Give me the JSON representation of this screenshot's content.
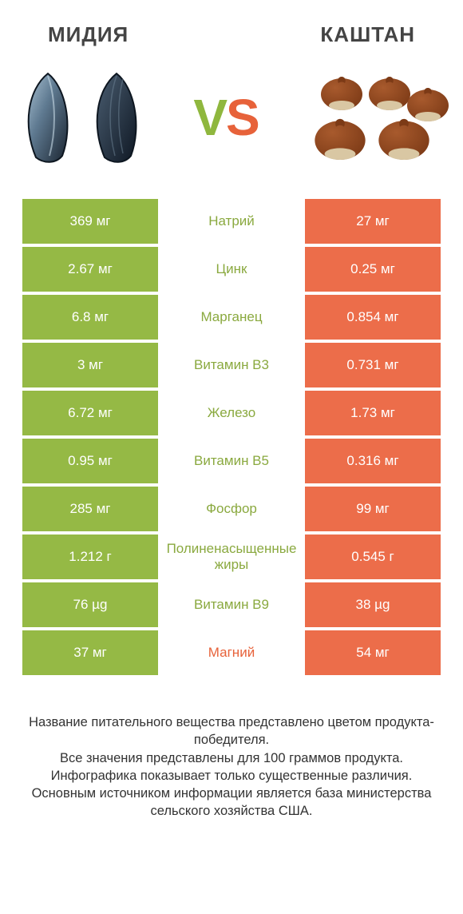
{
  "titles": {
    "left": "МИДИЯ",
    "right": "КАШТАН"
  },
  "vs": {
    "v": "V",
    "s": "S"
  },
  "colors": {
    "left": "#95b945",
    "right": "#ec6d4a",
    "left_text": "#8aa93f",
    "right_text": "#e7623a",
    "footer": "#333333",
    "mussel_dark": "#2a3543",
    "mussel_mid": "#5f7a91",
    "mussel_light": "#a9c1d2",
    "chestnut_body": "#7c3a16",
    "chestnut_shine": "#a85a2d",
    "chestnut_base": "#d9c7a3"
  },
  "rows": [
    {
      "label": "Натрий",
      "left": "369 мг",
      "right": "27 мг",
      "winner": "left"
    },
    {
      "label": "Цинк",
      "left": "2.67 мг",
      "right": "0.25 мг",
      "winner": "left"
    },
    {
      "label": "Марганец",
      "left": "6.8 мг",
      "right": "0.854 мг",
      "winner": "left"
    },
    {
      "label": "Витамин B3",
      "left": "3 мг",
      "right": "0.731 мг",
      "winner": "left"
    },
    {
      "label": "Железо",
      "left": "6.72 мг",
      "right": "1.73 мг",
      "winner": "left"
    },
    {
      "label": "Витамин B5",
      "left": "0.95 мг",
      "right": "0.316 мг",
      "winner": "left"
    },
    {
      "label": "Фосфор",
      "left": "285 мг",
      "right": "99 мг",
      "winner": "left"
    },
    {
      "label": "Полиненасыщенные жиры",
      "left": "1.212 г",
      "right": "0.545 г",
      "winner": "left"
    },
    {
      "label": "Витамин B9",
      "left": "76 µg",
      "right": "38 µg",
      "winner": "left"
    },
    {
      "label": "Магний",
      "left": "37 мг",
      "right": "54 мг",
      "winner": "right"
    }
  ],
  "footer_lines": [
    "Название питательного вещества представлено цветом продукта-победителя.",
    "Все значения представлены для 100 граммов продукта.",
    "Инфографика показывает только существенные различия.",
    "Основным источником информации является база министерства сельского хозяйства США."
  ]
}
